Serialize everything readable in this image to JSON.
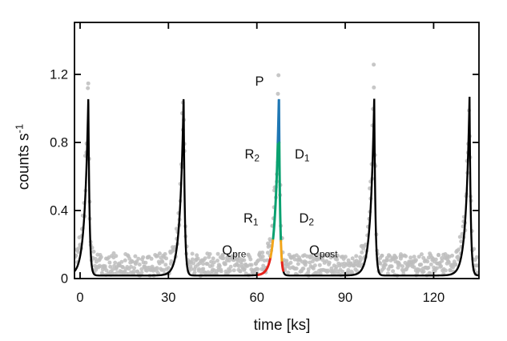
{
  "chart_data": {
    "type": "line+scatter",
    "description": "Periodic X-ray light curve: gray count-rate data points with a black periodic flare model; one flare cycle is color-coded into phase intervals Q_pre, R1, R2, P, D1, D2, Q_post.",
    "xlabel": "time [ks]",
    "ylabel": {
      "base": "counts s",
      "sup": "-1",
      "plain": "counts s^-1"
    },
    "xlim": [
      -1.9,
      135.4
    ],
    "ylim": [
      0,
      1.505
    ],
    "xticks": {
      "values": [
        0,
        30,
        60,
        90,
        120
      ],
      "labels": [
        "0",
        "30",
        "60",
        "90",
        "120"
      ]
    },
    "yticks": {
      "values": [
        0,
        0.4,
        0.8,
        1.2
      ],
      "labels": [
        "0",
        "0.4",
        "0.8",
        "1.2"
      ]
    },
    "grid": false,
    "frame": {
      "color": "#000000",
      "ticks_on_all_sides": true
    },
    "model": {
      "baseline": 0.018,
      "amplitude": 1.054,
      "period": 32.35,
      "first_peak_t": 2.8,
      "peak_times": [
        2.8,
        35.15,
        67.5,
        99.85,
        132.2
      ],
      "rise_tau": 1.25,
      "decay_tau": 0.4,
      "color": "#000000",
      "linewidth": 2.4
    },
    "black_ranges": [
      [
        -1.9,
        60.2
      ],
      [
        68.95,
        135.4
      ]
    ],
    "colored_peak": {
      "peak_t": 67.5,
      "linewidth": 3.0,
      "segments": [
        {
          "phase": "Q_pre",
          "color": "red",
          "t_range": [
            60.2,
            64.65
          ]
        },
        {
          "phase": "R1",
          "color": "orange",
          "t_range": [
            64.65,
            65.53
          ]
        },
        {
          "phase": "R2",
          "color": "green",
          "t_range": [
            65.53,
            67.13
          ]
        },
        {
          "phase": "P",
          "color": "blue",
          "t_range": [
            67.13,
            67.62
          ]
        },
        {
          "phase": "D1",
          "color": "green",
          "t_range": [
            67.62,
            68.16
          ]
        },
        {
          "phase": "D2",
          "color": "orange",
          "t_range": [
            68.16,
            68.55
          ]
        },
        {
          "phase": "Q_post",
          "color": "red",
          "t_range": [
            68.55,
            68.95
          ]
        }
      ]
    },
    "colors": {
      "red": "#e5231b",
      "orange": "#f2a51a",
      "green": "#0aa170",
      "blue": "#1f77b4",
      "scatter_gray": "#bdbdbd"
    },
    "annotations": [
      {
        "main": "P",
        "sub": "",
        "t": 60.9,
        "c": 1.133
      },
      {
        "main": "R",
        "sub": "2",
        "t": 58.4,
        "c": 0.705
      },
      {
        "main": "D",
        "sub": "1",
        "t": 75.4,
        "c": 0.705
      },
      {
        "main": "R",
        "sub": "1",
        "t": 58.0,
        "c": 0.33
      },
      {
        "main": "D",
        "sub": "2",
        "t": 76.9,
        "c": 0.33
      },
      {
        "main": "Q",
        "sub": "pre",
        "t": 52.3,
        "c": 0.14
      },
      {
        "main": "Q",
        "sub": "post",
        "t": 82.6,
        "c": 0.14
      }
    ],
    "scatter": {
      "color": "#bdbdbd",
      "radius": 2.5,
      "opacity": 0.85,
      "seed": 11,
      "t_start": -1.7,
      "t_end": 135.2,
      "step": 0.18,
      "x_jitter": 0.12,
      "amp_jitter_min": 0.72,
      "amp_jitter_max": 1.42,
      "noise_max": 0.125,
      "y_max_clip": 1.46
    }
  }
}
